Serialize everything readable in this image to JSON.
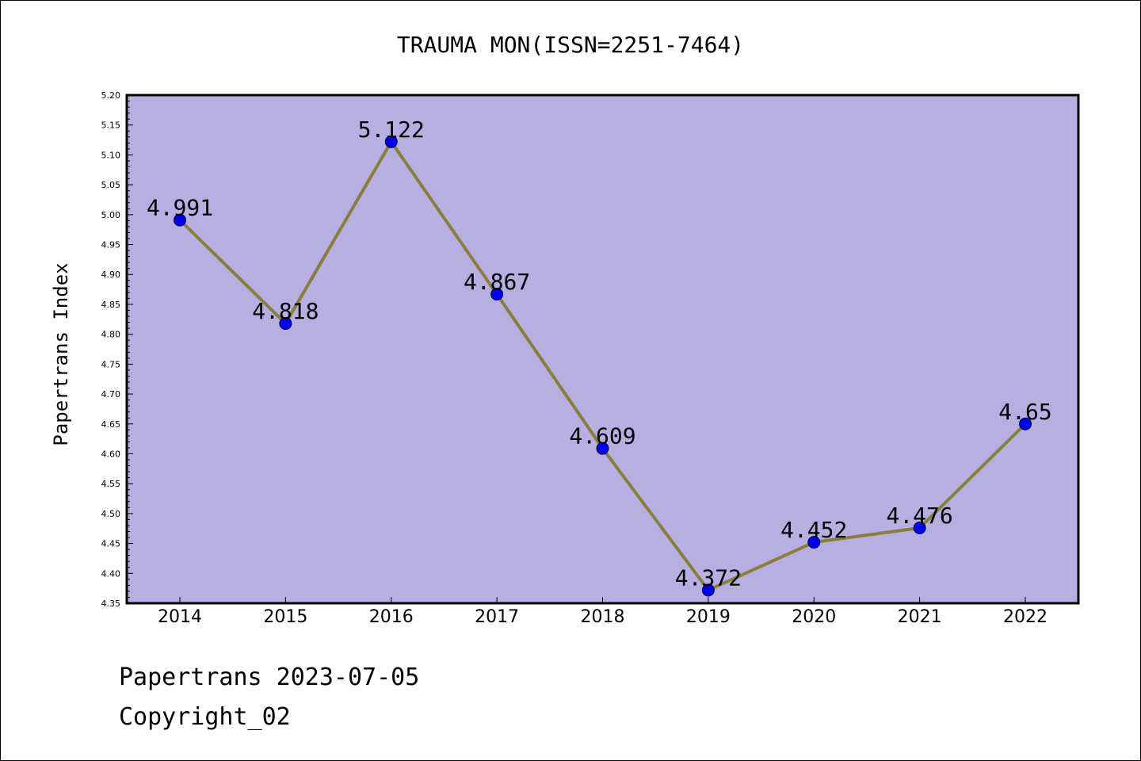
{
  "chart_data": {
    "type": "line",
    "title": "TRAUMA MON(ISSN=2251-7464)",
    "xlabel": "",
    "ylabel": "Papertrans Index",
    "categories": [
      "2014",
      "2015",
      "2016",
      "2017",
      "2018",
      "2019",
      "2020",
      "2021",
      "2022"
    ],
    "values": [
      4.991,
      4.818,
      5.122,
      4.867,
      4.609,
      4.372,
      4.452,
      4.476,
      4.65
    ],
    "value_labels": [
      "4.991",
      "4.818",
      "5.122",
      "4.867",
      "4.609",
      "4.372",
      "4.452",
      "4.476",
      "4.65"
    ],
    "ylim": [
      4.35,
      5.2
    ],
    "yticks": [
      "4.35",
      "4.40",
      "4.45",
      "4.50",
      "4.55",
      "4.60",
      "4.65",
      "4.70",
      "4.75",
      "4.80",
      "4.85",
      "4.90",
      "4.95",
      "5.00",
      "5.05",
      "5.10",
      "5.15",
      "5.20"
    ],
    "grid": false,
    "colors": {
      "plot_background": "#b5afe2",
      "line": "#8b7e3c",
      "marker": "#0000ee"
    }
  },
  "footer": {
    "line1": "Papertrans 2023-07-05",
    "line2": "Copyright_02"
  }
}
